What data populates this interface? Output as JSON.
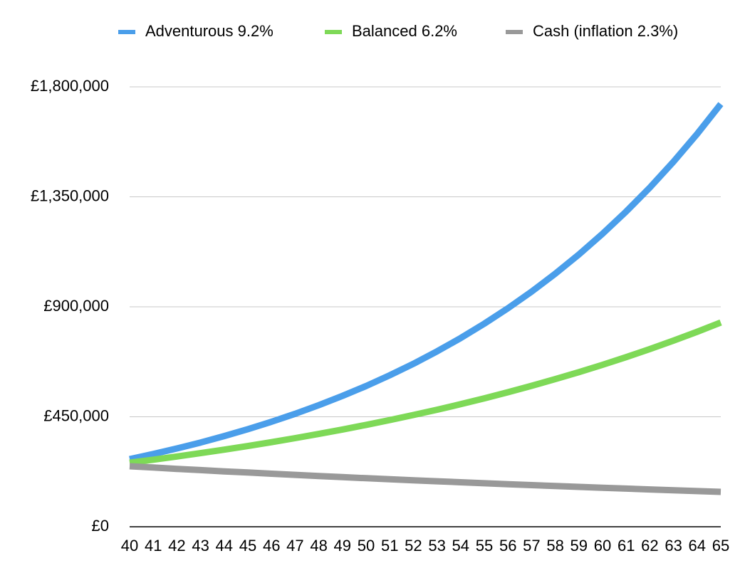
{
  "chart_data": {
    "type": "line",
    "categories": [
      "40",
      "41",
      "42",
      "43",
      "44",
      "45",
      "46",
      "47",
      "48",
      "49",
      "50",
      "51",
      "52",
      "53",
      "54",
      "55",
      "56",
      "57",
      "58",
      "59",
      "60",
      "61",
      "62",
      "63",
      "64",
      "65"
    ],
    "series": [
      {
        "name": "Adventurous 9.2%",
        "color": "#4a9eea",
        "values": [
          276700,
          297700,
          320400,
          344700,
          371000,
          399200,
          429500,
          462200,
          497400,
          535200,
          575900,
          619700,
          666800,
          717600,
          772100,
          830900,
          894100,
          962100,
          1035300,
          1114000,
          1198700,
          1289900,
          1388000,
          1493600,
          1607200,
          1729400
        ]
      },
      {
        "name": "Balanced 6.2%",
        "color": "#7ed957",
        "values": [
          262000,
          274400,
          287500,
          301100,
          315400,
          330400,
          346100,
          362500,
          379700,
          397800,
          416700,
          436500,
          457200,
          478900,
          501600,
          525500,
          550400,
          576600,
          604000,
          632700,
          662700,
          694100,
          727100,
          761700,
          797800,
          835700
        ]
      },
      {
        "name": "Cash (inflation 2.3%)",
        "color": "#999999",
        "values": [
          247600,
          242200,
          236900,
          231800,
          226700,
          221800,
          217000,
          212300,
          207600,
          203100,
          198700,
          194400,
          190100,
          186000,
          181900,
          178000,
          174100,
          170300,
          166600,
          163000,
          159500,
          156000,
          152600,
          149300,
          146000,
          142800
        ]
      }
    ],
    "ylim": [
      0,
      1800000
    ],
    "yticks": [
      {
        "value": 0,
        "label": "£0"
      },
      {
        "value": 450000,
        "label": "£450,000"
      },
      {
        "value": 900000,
        "label": "£900,000"
      },
      {
        "value": 1350000,
        "label": "£1,350,000"
      },
      {
        "value": 1800000,
        "label": "£1,800,000"
      }
    ],
    "grid": true,
    "legend": "top"
  }
}
